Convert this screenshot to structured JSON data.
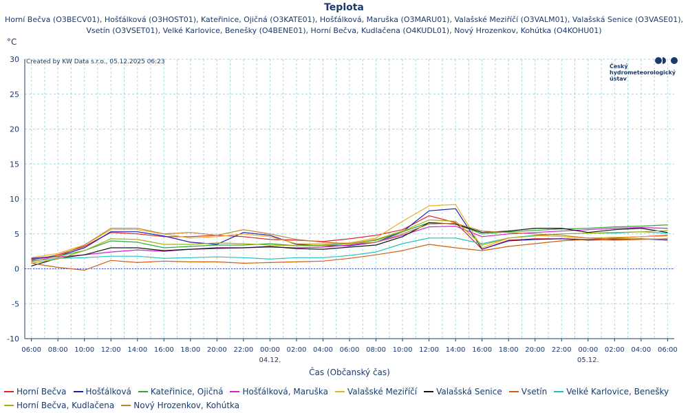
{
  "chart_data": {
    "type": "line",
    "title": "Teplota",
    "subtitle_lines": [
      "Horní Bečva (O3BECV01), Hošťálková (O3HOST01), Kateřinice, Ojičná (O3KATE01), Hošťálková, Maruška (O3MARU01), Valašské Meziříčí (O3VALM01), Valašská Senice (O3VASE01),",
      "Vsetín (O3VSET01), Velké Karlovice, Benešky (O4BENE01), Horní Bečva, Kudlačena (O4KUDL01), Nový Hrozenkov, Kohútka (O4KOHU01)"
    ],
    "ylabel": "°C",
    "xlabel": "Čas (Občanský čas)",
    "credit": "Created by KW Data s.r.o., 05.12.2025 06:23",
    "logo_text": [
      "Český",
      "hydrometeorologický",
      "ústav"
    ],
    "ylim": [
      -10,
      30
    ],
    "yticks": [
      -10,
      -5,
      0,
      5,
      10,
      15,
      20,
      25,
      30
    ],
    "xlim": [
      -0.5,
      48.5
    ],
    "x_unit": "hours since 03.12. 06:00",
    "xticks": [
      0,
      2,
      4,
      6,
      8,
      10,
      12,
      14,
      16,
      18,
      20,
      22,
      24,
      26,
      28,
      30,
      32,
      34,
      36,
      38,
      40,
      42,
      44,
      46,
      48
    ],
    "xtick_labels": [
      "06:00",
      "08:00",
      "10:00",
      "12:00",
      "14:00",
      "16:00",
      "18:00",
      "20:00",
      "22:00",
      "00:00",
      "02:00",
      "04:00",
      "06:00",
      "08:00",
      "10:00",
      "12:00",
      "14:00",
      "16:00",
      "18:00",
      "20:00",
      "22:00",
      "00:00",
      "02:00",
      "04:00",
      "06:00"
    ],
    "date_labels": [
      {
        "x": 18,
        "label": "04.12."
      },
      {
        "x": 42,
        "label": "05.12."
      }
    ],
    "grid": true,
    "zero_line": true,
    "legend_position": "bottom",
    "x": [
      0,
      2,
      4,
      6,
      8,
      10,
      12,
      14,
      16,
      18,
      20,
      22,
      24,
      26,
      28,
      30,
      32,
      34,
      36,
      38,
      40,
      42,
      44,
      46,
      48
    ],
    "series": [
      {
        "name": "Horní Bečva",
        "color": "#e02020",
        "values": [
          1.2,
          2.0,
          3.2,
          5.2,
          5.0,
          4.6,
          4.6,
          4.8,
          4.6,
          4.2,
          4.1,
          3.9,
          4.3,
          4.8,
          5.6,
          7.6,
          6.6,
          2.8,
          4.1,
          4.3,
          4.3,
          4.2,
          4.4,
          4.6,
          4.8
        ]
      },
      {
        "name": "Hošťálková",
        "color": "#1a1ab0",
        "values": [
          1.5,
          1.8,
          3.0,
          5.3,
          5.3,
          4.7,
          3.8,
          3.5,
          5.2,
          4.8,
          3.5,
          3.3,
          3.3,
          3.8,
          5.3,
          8.3,
          8.6,
          2.8,
          4.0,
          4.2,
          4.3,
          4.1,
          4.2,
          4.3,
          4.1
        ]
      },
      {
        "name": "Kateřinice, Ojičná",
        "color": "#2ea82e",
        "values": [
          1.3,
          1.8,
          2.6,
          4.0,
          3.8,
          3.0,
          3.2,
          3.4,
          3.4,
          3.6,
          3.3,
          3.4,
          3.6,
          4.1,
          5.3,
          6.6,
          6.4,
          5.0,
          5.3,
          5.5,
          5.7,
          5.8,
          6.0,
          6.1,
          6.3
        ]
      },
      {
        "name": "Hošťálková, Maruška",
        "color": "#d020d0",
        "values": [
          1.4,
          1.7,
          2.0,
          2.4,
          2.7,
          2.5,
          2.8,
          2.9,
          3.0,
          3.1,
          3.0,
          3.1,
          3.4,
          3.8,
          4.8,
          6.0,
          6.1,
          4.6,
          5.0,
          5.2,
          5.4,
          5.6,
          5.8,
          5.9,
          5.8
        ]
      },
      {
        "name": "Valašské Meziříčí",
        "color": "#e8b020",
        "values": [
          1.6,
          2.2,
          3.4,
          5.6,
          5.6,
          5.0,
          4.4,
          4.6,
          5.0,
          4.6,
          3.6,
          3.6,
          3.7,
          4.4,
          6.8,
          9.0,
          9.2,
          3.0,
          4.4,
          4.8,
          4.6,
          4.4,
          4.5,
          4.6,
          4.7
        ]
      },
      {
        "name": "Valašská Senice",
        "color": "#111111",
        "values": [
          0.4,
          1.5,
          2.0,
          3.0,
          3.0,
          2.6,
          2.8,
          3.0,
          3.0,
          3.2,
          2.9,
          2.8,
          3.1,
          3.4,
          4.6,
          6.6,
          6.4,
          5.2,
          5.4,
          5.8,
          5.8,
          5.2,
          5.6,
          5.8,
          5.2
        ]
      },
      {
        "name": "Vsetín",
        "color": "#d06010",
        "values": [
          0.8,
          0.2,
          -0.2,
          1.2,
          0.9,
          1.1,
          1.0,
          1.0,
          0.8,
          0.9,
          1.0,
          1.1,
          1.5,
          2.0,
          2.6,
          3.5,
          3.0,
          2.6,
          3.2,
          3.6,
          4.0,
          4.2,
          4.1,
          4.2,
          4.3
        ]
      },
      {
        "name": "Velké Karlovice, Benešky",
        "color": "#20c0c0",
        "values": [
          1.1,
          1.5,
          1.6,
          1.8,
          1.8,
          1.5,
          1.6,
          1.7,
          1.6,
          1.4,
          1.6,
          1.6,
          1.9,
          2.4,
          3.6,
          4.4,
          4.4,
          3.6,
          4.4,
          4.8,
          5.0,
          5.1,
          5.1,
          5.3,
          5.1
        ]
      },
      {
        "name": "Horní Bečva, Kudlačena",
        "color": "#a8b010",
        "values": [
          0.8,
          1.4,
          2.6,
          4.3,
          4.2,
          3.5,
          3.5,
          3.7,
          3.6,
          3.4,
          3.3,
          3.3,
          3.6,
          4.2,
          5.4,
          7.0,
          6.8,
          3.4,
          4.4,
          4.7,
          5.0,
          5.1,
          5.2,
          5.3,
          5.5
        ]
      },
      {
        "name": "Nový Hrozenkov, Kohútka",
        "color": "#c08030",
        "values": [
          1.0,
          1.8,
          3.4,
          5.8,
          5.8,
          5.0,
          5.2,
          4.8,
          5.6,
          5.0,
          4.2,
          3.8,
          3.6,
          3.8,
          5.0,
          6.4,
          6.5,
          5.4,
          5.2,
          5.0,
          4.8,
          4.4,
          4.3,
          4.3,
          4.2
        ]
      }
    ]
  }
}
